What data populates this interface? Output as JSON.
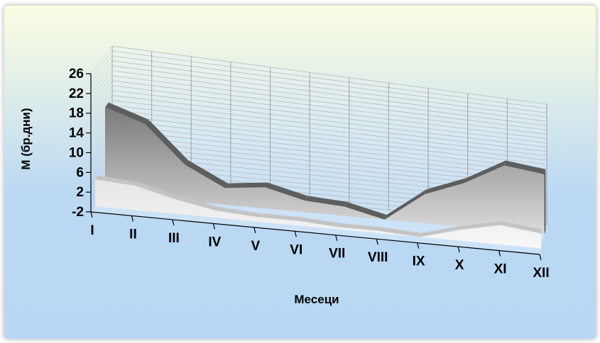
{
  "chart_data": {
    "type": "area",
    "three_d": true,
    "xlabel": "Месеци",
    "ylabel": "М (бр.дни)",
    "categories": [
      "I",
      "II",
      "III",
      "IV",
      "V",
      "VI",
      "VII",
      "VIII",
      "IX",
      "X",
      "XI",
      "XII"
    ],
    "series": [
      {
        "values": [
          3.5,
          3,
          1,
          -0.5,
          -1,
          -1,
          -1.5,
          -1.5,
          -2,
          0.5,
          2.5,
          1.5
        ]
      },
      {
        "values": [
          15.5,
          13,
          5.5,
          1.5,
          2.5,
          0.5,
          0,
          -2,
          4.5,
          8,
          13,
          12
        ]
      }
    ],
    "yticks": [
      "26",
      "22",
      "18",
      "14",
      "10",
      "6",
      "2",
      "-2"
    ],
    "ylim": [
      -2,
      26
    ],
    "grid": true,
    "colors": {
      "front_series": "#d8d8d8",
      "back_series": "#7a7a7a",
      "back_series_top": "#5e5e5e",
      "gridline": "#b4b4b4",
      "axis": "#000000"
    }
  }
}
